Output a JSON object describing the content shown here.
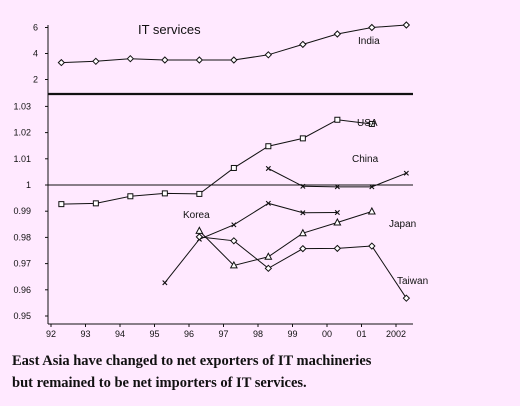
{
  "chart_data": {
    "type": "line",
    "title": "IT services",
    "x_ticks": [
      "92",
      "93",
      "94",
      "95",
      "96",
      "97",
      "98",
      "99",
      "00",
      "01",
      "2002"
    ],
    "upper_panel": {
      "y_ticks": [
        "6",
        "4",
        "2"
      ],
      "ylim": [
        1,
        7
      ],
      "series": [
        {
          "name": "India",
          "marker": "diamond",
          "x": [
            1992.3,
            1993.3,
            1994.3,
            1995.3,
            1996.3,
            1997.3,
            1998.3,
            1999.3,
            2000.3,
            2001.3,
            2002.3
          ],
          "values": [
            3.3,
            3.4,
            3.6,
            3.5,
            3.5,
            3.5,
            3.9,
            4.7,
            5.5,
            6.0,
            6.5
          ]
        }
      ]
    },
    "lower_panel": {
      "y_ticks": [
        "1.03",
        "1.02",
        "1.01",
        "1",
        "0.99",
        "0.98",
        "0.97",
        "0.96",
        "0.95"
      ],
      "ylim": [
        0.95,
        1.035
      ],
      "reference_line": 1,
      "series": [
        {
          "name": "USA",
          "marker": "square",
          "x": [
            1992.3,
            1993.3,
            1994.3,
            1995.3,
            1996.3,
            1997.3,
            1998.3,
            1999.3,
            2000.3,
            2001.3
          ],
          "values": [
            0.9927,
            0.993,
            0.9957,
            0.9968,
            0.9966,
            1.0065,
            1.0148,
            1.0178,
            1.0249,
            1.0233
          ]
        },
        {
          "name": "China",
          "marker": "x",
          "x": [
            1998.3,
            1999.3,
            2000.3,
            2001.3,
            2002.3
          ],
          "values": [
            1.0063,
            0.9995,
            0.9993,
            0.9993,
            1.0045
          ]
        },
        {
          "name": "Korea",
          "marker": "x",
          "x": [
            1995.3,
            1996.3,
            1997.3,
            1998.3,
            1999.3,
            2000.3
          ],
          "values": [
            0.9627,
            0.9793,
            0.9848,
            0.993,
            0.9894,
            0.9895
          ]
        },
        {
          "name": "Japan",
          "marker": "triangle",
          "x": [
            1996.3,
            1997.3,
            1998.3,
            1999.3,
            2000.3,
            2001.3
          ],
          "values": [
            0.9825,
            0.9693,
            0.9726,
            0.9816,
            0.9857,
            0.9899
          ]
        },
        {
          "name": "Taiwan",
          "marker": "diamond",
          "x": [
            1996.3,
            1997.3,
            1998.3,
            1999.3,
            2000.3,
            2001.3,
            2002.3
          ],
          "values": [
            0.9802,
            0.9787,
            0.9682,
            0.9757,
            0.9758,
            0.9767,
            0.9568
          ]
        }
      ]
    }
  },
  "caption": {
    "line1": "East Asia have changed to net exporters of IT machineries",
    "line2": "but remained to be net importers of IT services."
  },
  "colors": {
    "background": "#ffe9ff",
    "line": "#111111"
  }
}
